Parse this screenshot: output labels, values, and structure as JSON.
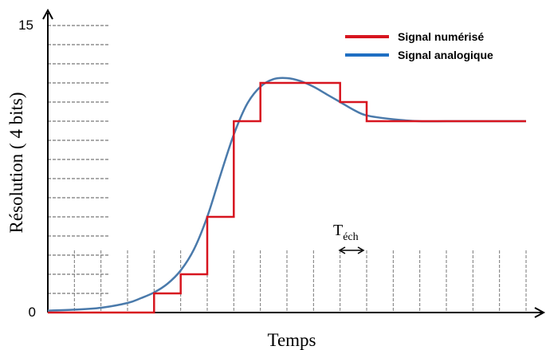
{
  "chart_data": {
    "type": "line",
    "ylabel": "Résolution ( 4 bits)",
    "xlabel": "Temps",
    "ylim": [
      0,
      15
    ],
    "y_tick_labels": [
      "0",
      "15"
    ],
    "grid": true,
    "legend_position": "top-right",
    "annotation": {
      "main": "T",
      "sub": "éch"
    },
    "series": [
      {
        "name": "Signal numérisé",
        "color": "#d7151f",
        "step": true,
        "x": [
          0,
          4,
          5,
          6,
          7,
          8,
          9,
          10,
          11,
          12,
          13,
          14,
          15,
          16,
          17,
          18
        ],
        "values": [
          0,
          1,
          2,
          5,
          10,
          12,
          12,
          12,
          11,
          10,
          10,
          10,
          10,
          10,
          10,
          10
        ]
      },
      {
        "name": "Signal analogique",
        "color": "#4a7aab",
        "legend_color": "#1f6fc3",
        "x": [
          0,
          1,
          2,
          3,
          3.5,
          4,
          4.5,
          5,
          5.5,
          6,
          6.5,
          7,
          7.5,
          8,
          8.5,
          9,
          9.5,
          10,
          10.5,
          11,
          11.5,
          12,
          13,
          14,
          15,
          16,
          17,
          18
        ],
        "values": [
          0.1,
          0.15,
          0.25,
          0.5,
          0.75,
          1.05,
          1.5,
          2.2,
          3.3,
          5.0,
          7.2,
          9.3,
          10.9,
          11.8,
          12.2,
          12.25,
          12.1,
          11.8,
          11.4,
          11.0,
          10.6,
          10.3,
          10.1,
          10.0,
          10.0,
          10.0,
          10.0,
          10.0
        ]
      }
    ]
  }
}
